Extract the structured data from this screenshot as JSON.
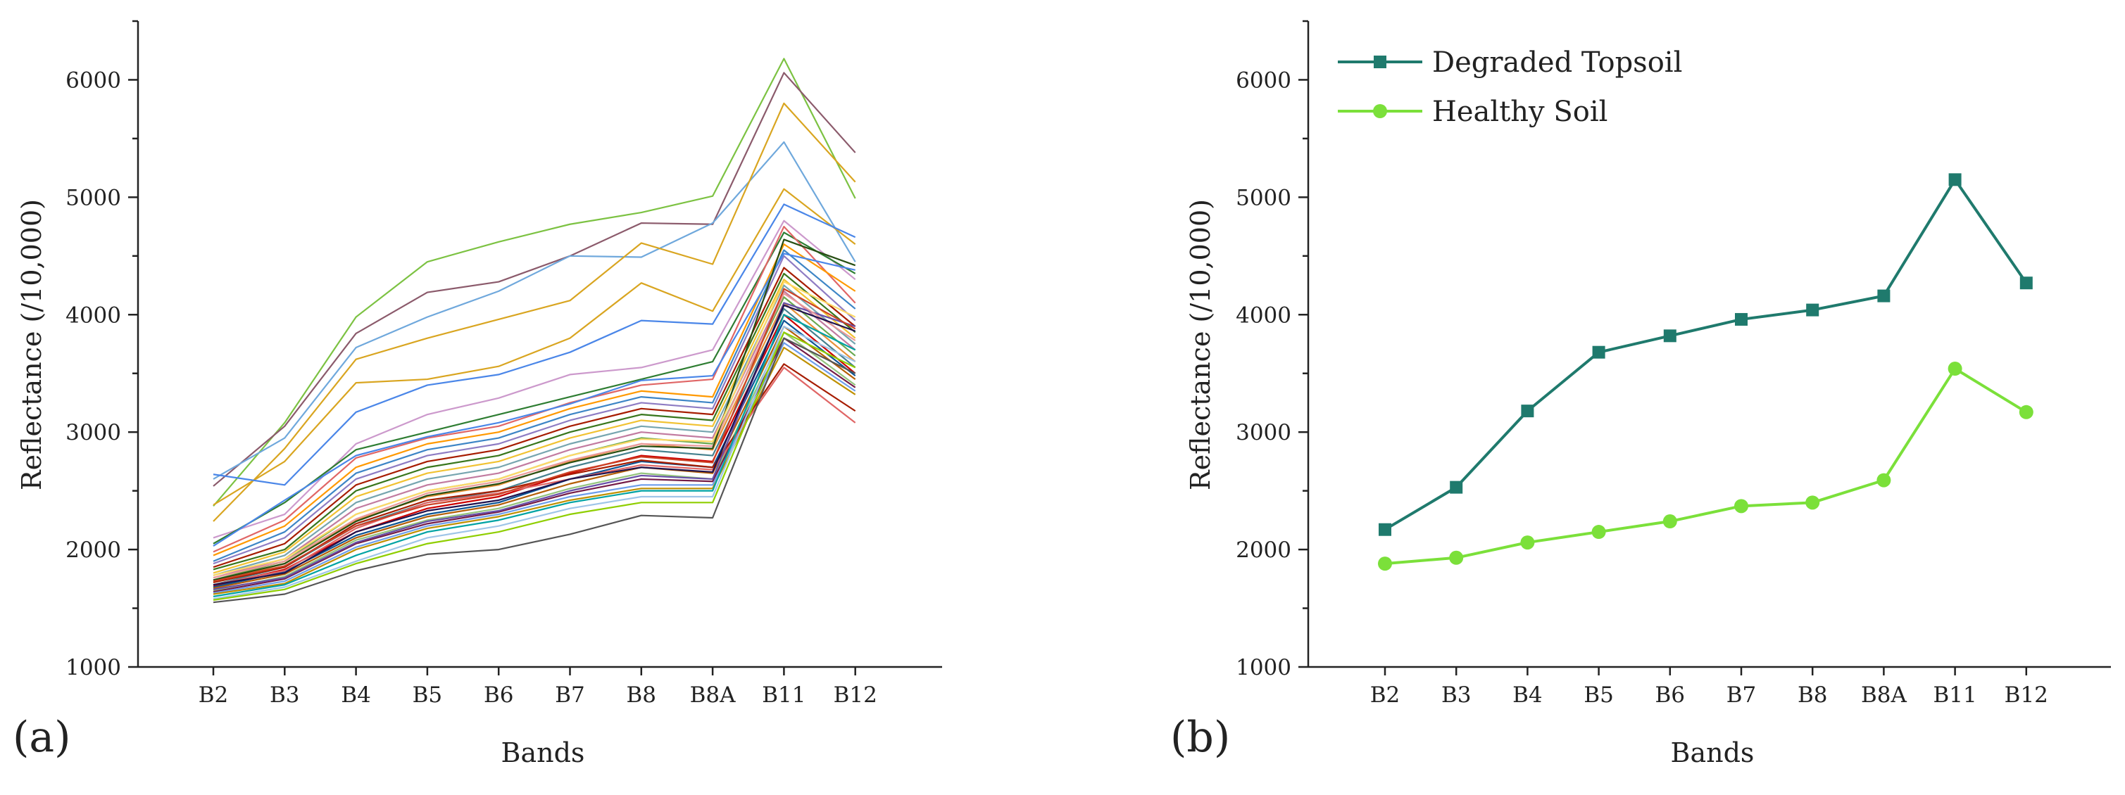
{
  "chart_data": [
    {
      "panel_label": "(a)",
      "type": "line",
      "description_series": "many individual sample spectra",
      "categories": [
        "B2",
        "B3",
        "B4",
        "B5",
        "B6",
        "B7",
        "B8",
        "B8A",
        "B11",
        "B12"
      ],
      "xlabel": "Bands",
      "ylabel": "Reflectance (/10,000)",
      "ylim": [
        1000,
        6500
      ],
      "yticks": [
        1000,
        2000,
        3000,
        4000,
        5000,
        6000
      ],
      "series": [
        {
          "color": "#7cc242",
          "values": [
            2370,
            3080,
            3980,
            4450,
            4620,
            4770,
            4870,
            5010,
            6180,
            4990
          ]
        },
        {
          "color": "#8b5a6b",
          "values": [
            2540,
            3050,
            3840,
            4190,
            4280,
            4500,
            4780,
            4770,
            6060,
            5380
          ]
        },
        {
          "color": "#6fa8dc",
          "values": [
            2600,
            2950,
            3720,
            3980,
            4200,
            4500,
            4490,
            4780,
            5470,
            4450
          ]
        },
        {
          "color": "#d9a520",
          "values": [
            2240,
            2860,
            3620,
            3800,
            3960,
            4120,
            4610,
            4430,
            5800,
            5130
          ]
        },
        {
          "color": "#d9a520",
          "values": [
            2380,
            2750,
            3420,
            3450,
            3560,
            3800,
            4270,
            4030,
            5070,
            4600
          ]
        },
        {
          "color": "#4a86e8",
          "values": [
            2640,
            2550,
            3170,
            3400,
            3490,
            3680,
            3950,
            3920,
            4940,
            4660
          ]
        },
        {
          "color": "#cc99cc",
          "values": [
            2100,
            2300,
            2900,
            3150,
            3290,
            3490,
            3550,
            3700,
            4800,
            4300
          ]
        },
        {
          "color": "#2e7d32",
          "values": [
            2050,
            2400,
            2850,
            3000,
            3150,
            3300,
            3450,
            3600,
            4700,
            4350
          ]
        },
        {
          "color": "#e06666",
          "values": [
            1980,
            2250,
            2780,
            2950,
            3050,
            3250,
            3400,
            3450,
            4750,
            4100
          ]
        },
        {
          "color": "#ff9900",
          "values": [
            1950,
            2200,
            2700,
            2900,
            3000,
            3200,
            3350,
            3300,
            4600,
            4200
          ]
        },
        {
          "color": "#3d85c6",
          "values": [
            1900,
            2150,
            2650,
            2850,
            2950,
            3150,
            3300,
            3250,
            4550,
            4050
          ]
        },
        {
          "color": "#8e7cc3",
          "values": [
            1880,
            2100,
            2600,
            2800,
            2900,
            3100,
            3250,
            3200,
            4500,
            3950
          ]
        },
        {
          "color": "#a61c00",
          "values": [
            1850,
            2050,
            2550,
            2750,
            2850,
            3050,
            3200,
            3150,
            4400,
            3900
          ]
        },
        {
          "color": "#38761d",
          "values": [
            1830,
            2000,
            2500,
            2700,
            2800,
            3000,
            3150,
            3100,
            4350,
            3850
          ]
        },
        {
          "color": "#f1c232",
          "values": [
            1800,
            1980,
            2450,
            2650,
            2750,
            2950,
            3100,
            3050,
            4300,
            3800
          ]
        },
        {
          "color": "#76a5af",
          "values": [
            1780,
            1950,
            2400,
            2600,
            2700,
            2900,
            3050,
            3000,
            4250,
            3750
          ]
        },
        {
          "color": "#c27ba0",
          "values": [
            1760,
            1920,
            2350,
            2550,
            2650,
            2850,
            3000,
            2950,
            4200,
            3700
          ]
        },
        {
          "color": "#6aa84f",
          "values": [
            1740,
            1900,
            2300,
            2500,
            2600,
            2800,
            2950,
            2900,
            4150,
            3650
          ]
        },
        {
          "color": "#e69138",
          "values": [
            1720,
            1880,
            2250,
            2450,
            2550,
            2750,
            2900,
            2850,
            4100,
            3600
          ]
        },
        {
          "color": "#45818e",
          "values": [
            1700,
            1850,
            2200,
            2400,
            2500,
            2700,
            2850,
            2800,
            4050,
            3550
          ]
        },
        {
          "color": "#cc0000",
          "values": [
            1690,
            1830,
            2150,
            2350,
            2450,
            2650,
            2800,
            2750,
            4000,
            3500
          ]
        },
        {
          "color": "#0b5394",
          "values": [
            1680,
            1810,
            2120,
            2300,
            2400,
            2600,
            2750,
            2700,
            3950,
            3480
          ]
        },
        {
          "color": "#b45f06",
          "values": [
            1670,
            1790,
            2100,
            2280,
            2380,
            2560,
            2700,
            2650,
            3900,
            3450
          ]
        },
        {
          "color": "#93c47d",
          "values": [
            1650,
            1770,
            2080,
            2250,
            2350,
            2520,
            2650,
            2600,
            3850,
            3400
          ]
        },
        {
          "color": "#741b47",
          "values": [
            1640,
            1750,
            2050,
            2220,
            2320,
            2480,
            2600,
            2580,
            3800,
            3380
          ]
        },
        {
          "color": "#6d9eeb",
          "values": [
            1630,
            1730,
            2020,
            2200,
            2300,
            2450,
            2550,
            2550,
            3760,
            3350
          ]
        },
        {
          "color": "#bf9000",
          "values": [
            1620,
            1710,
            2000,
            2180,
            2280,
            2420,
            2520,
            2520,
            3720,
            3320
          ]
        },
        {
          "color": "#e06666",
          "values": [
            1700,
            1820,
            2180,
            2400,
            2480,
            2600,
            2720,
            2680,
            3550,
            3080
          ]
        },
        {
          "color": "#a61c00",
          "values": [
            1720,
            1850,
            2220,
            2420,
            2500,
            2640,
            2760,
            2700,
            3580,
            3180
          ]
        },
        {
          "color": "#674ea7",
          "values": [
            1660,
            1760,
            2060,
            2240,
            2330,
            2500,
            2630,
            2600,
            4100,
            3900
          ]
        },
        {
          "color": "#00a3a3",
          "values": [
            1600,
            1700,
            1950,
            2150,
            2250,
            2400,
            2500,
            2500,
            4000,
            3700
          ]
        },
        {
          "color": "#9fc5e8",
          "values": [
            1580,
            1680,
            1900,
            2100,
            2200,
            2350,
            2450,
            2450,
            3900,
            3600
          ]
        },
        {
          "color": "#8fce00",
          "values": [
            1570,
            1660,
            1880,
            2050,
            2150,
            2300,
            2400,
            2400,
            3850,
            3550
          ]
        },
        {
          "color": "#555555",
          "values": [
            1550,
            1620,
            1820,
            1960,
            2000,
            2130,
            2290,
            2270,
            3800,
            3500
          ]
        },
        {
          "color": "#4a86e8",
          "values": [
            2030,
            2420,
            2800,
            2960,
            3080,
            3240,
            3440,
            3480,
            4520,
            4380
          ]
        },
        {
          "color": "#ea9999",
          "values": [
            1760,
            1900,
            2260,
            2480,
            2580,
            2760,
            2900,
            2880,
            4180,
            3780
          ]
        },
        {
          "color": "#274e13",
          "values": [
            1740,
            1880,
            2240,
            2460,
            2560,
            2740,
            2880,
            2860,
            4640,
            4420
          ]
        },
        {
          "color": "#ffd966",
          "values": [
            1780,
            1920,
            2300,
            2500,
            2600,
            2800,
            2940,
            2920,
            4280,
            3980
          ]
        },
        {
          "color": "#20124d",
          "values": [
            1700,
            1800,
            2150,
            2330,
            2420,
            2600,
            2700,
            2660,
            4080,
            3860
          ]
        },
        {
          "color": "#cc4125",
          "values": [
            1730,
            1860,
            2200,
            2380,
            2470,
            2660,
            2790,
            2740,
            4220,
            3880
          ]
        }
      ]
    },
    {
      "panel_label": "(b)",
      "type": "line",
      "categories": [
        "B2",
        "B3",
        "B4",
        "B5",
        "B6",
        "B7",
        "B8",
        "B8A",
        "B11",
        "B12"
      ],
      "xlabel": "Bands",
      "ylabel": "Reflectance (/10,000)",
      "ylim": [
        1000,
        6500
      ],
      "yticks": [
        1000,
        2000,
        3000,
        4000,
        5000,
        6000
      ],
      "legend_position": "top-left",
      "series": [
        {
          "name": "Degraded Topsoil",
          "color": "#1f7a6d",
          "marker": "square",
          "values": [
            2170,
            2530,
            3180,
            3680,
            3820,
            3960,
            4040,
            4160,
            5150,
            4270
          ]
        },
        {
          "name": "Healthy Soil",
          "color": "#7be03a",
          "marker": "circle",
          "values": [
            1880,
            1930,
            2060,
            2150,
            2240,
            2370,
            2400,
            2590,
            3540,
            3170
          ]
        }
      ]
    }
  ]
}
